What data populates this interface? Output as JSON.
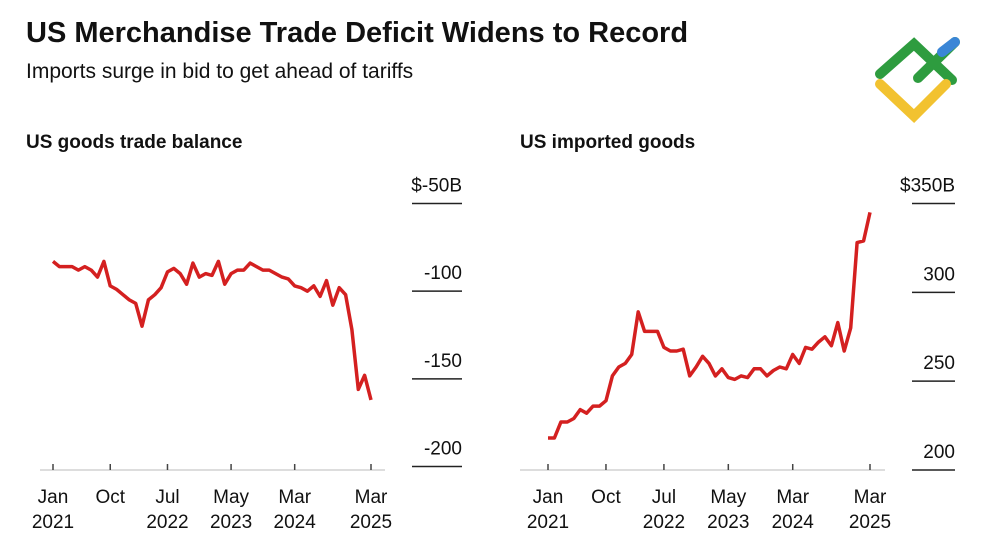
{
  "title": "US Merchandise Trade Deficit Widens to Record",
  "subtitle": "Imports surge in bid to get ahead of tariffs",
  "chart_data": [
    {
      "type": "line",
      "title": "US goods trade balance",
      "x": [
        "2021-01",
        "2021-02",
        "2021-03",
        "2021-04",
        "2021-05",
        "2021-06",
        "2021-07",
        "2021-08",
        "2021-09",
        "2021-10",
        "2021-11",
        "2021-12",
        "2022-01",
        "2022-02",
        "2022-03",
        "2022-04",
        "2022-05",
        "2022-06",
        "2022-07",
        "2022-08",
        "2022-09",
        "2022-10",
        "2022-11",
        "2022-12",
        "2023-01",
        "2023-02",
        "2023-03",
        "2023-04",
        "2023-05",
        "2023-06",
        "2023-07",
        "2023-08",
        "2023-09",
        "2023-10",
        "2023-11",
        "2023-12",
        "2024-01",
        "2024-02",
        "2024-03",
        "2024-04",
        "2024-05",
        "2024-06",
        "2024-07",
        "2024-08",
        "2024-09",
        "2024-10",
        "2024-11",
        "2024-12",
        "2025-01",
        "2025-02",
        "2025-03"
      ],
      "series": [
        {
          "name": "US goods trade balance",
          "color": "#d42020",
          "values": [
            -83,
            -86,
            -86,
            -86,
            -88,
            -86,
            -88,
            -92,
            -83,
            -97,
            -99,
            -102,
            -105,
            -107,
            -120,
            -105,
            -102,
            -98,
            -89,
            -87,
            -90,
            -96,
            -84,
            -92,
            -90,
            -91,
            -83,
            -96,
            -90,
            -88,
            -88,
            -84,
            -86,
            -88,
            -88,
            -90,
            -92,
            -93,
            -97,
            -98,
            -100,
            -97,
            -103,
            -94,
            -108,
            -98,
            -102,
            -122,
            -156,
            -148,
            -162
          ]
        }
      ],
      "ylim": [
        -202,
        -48
      ],
      "yticks": [
        {
          "value": -50,
          "label": "$-50B"
        },
        -100,
        -150,
        -200
      ],
      "xticks": [
        {
          "value": "2021-01",
          "label": "Jan 2021"
        },
        {
          "value": "2021-10",
          "label": "Oct"
        },
        {
          "value": "2022-07",
          "label": "Jul 2022"
        },
        {
          "value": "2023-05",
          "label": "May 2023"
        },
        {
          "value": "2024-03",
          "label": "Mar 2024"
        },
        {
          "value": "2025-03",
          "label": "Mar 2025"
        }
      ]
    },
    {
      "type": "line",
      "title": "US imported goods",
      "x": [
        "2021-01",
        "2021-02",
        "2021-03",
        "2021-04",
        "2021-05",
        "2021-06",
        "2021-07",
        "2021-08",
        "2021-09",
        "2021-10",
        "2021-11",
        "2021-12",
        "2022-01",
        "2022-02",
        "2022-03",
        "2022-04",
        "2022-05",
        "2022-06",
        "2022-07",
        "2022-08",
        "2022-09",
        "2022-10",
        "2022-11",
        "2022-12",
        "2023-01",
        "2023-02",
        "2023-03",
        "2023-04",
        "2023-05",
        "2023-06",
        "2023-07",
        "2023-08",
        "2023-09",
        "2023-10",
        "2023-11",
        "2023-12",
        "2024-01",
        "2024-02",
        "2024-03",
        "2024-04",
        "2024-05",
        "2024-06",
        "2024-07",
        "2024-08",
        "2024-09",
        "2024-10",
        "2024-11",
        "2024-12",
        "2025-01",
        "2025-02",
        "2025-03"
      ],
      "series": [
        {
          "name": "US imported goods",
          "color": "#d42020",
          "values": [
            218,
            218,
            227,
            227,
            229,
            234,
            232,
            236,
            236,
            239,
            253,
            258,
            260,
            265,
            289,
            278,
            278,
            278,
            269,
            267,
            267,
            268,
            253,
            258,
            264,
            260,
            253,
            257,
            252,
            251,
            253,
            252,
            257,
            257,
            253,
            256,
            258,
            257,
            265,
            260,
            269,
            268,
            272,
            275,
            270,
            283,
            267,
            280,
            328,
            329,
            345
          ]
        }
      ],
      "ylim": [
        200,
        352
      ],
      "yticks": [
        200,
        250,
        300,
        {
          "value": 350,
          "label": "$350B"
        }
      ],
      "xticks": [
        {
          "value": "2021-01",
          "label": "Jan 2021"
        },
        {
          "value": "2021-10",
          "label": "Oct"
        },
        {
          "value": "2022-07",
          "label": "Jul 2022"
        },
        {
          "value": "2023-05",
          "label": "May 2023"
        },
        {
          "value": "2024-03",
          "label": "Mar 2024"
        },
        {
          "value": "2025-03",
          "label": "Mar 2025"
        }
      ]
    }
  ]
}
